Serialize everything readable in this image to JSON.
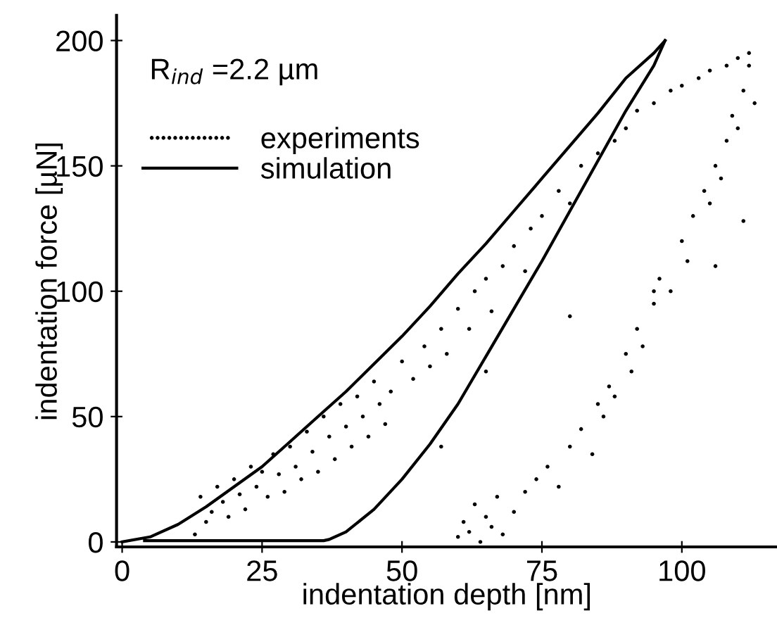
{
  "chart_data": {
    "type": "scatter",
    "xlabel": "indentation depth [nm]",
    "ylabel": "indentation force [µN]",
    "annotations": [
      "R$_{ind}$ =2.2 µm"
    ],
    "xlim": [
      -1,
      117
    ],
    "ylim": [
      -2,
      210
    ],
    "xticks": [
      0,
      25,
      50,
      75,
      100
    ],
    "yticks": [
      0,
      50,
      100,
      150,
      200
    ],
    "grid": false,
    "legend": "top left",
    "series": [
      {
        "name": "experiments",
        "color": "#000000",
        "marker": "circle",
        "x": [
          13,
          14,
          15,
          16,
          17,
          18,
          19,
          20,
          21,
          22,
          23,
          24,
          25,
          26,
          27,
          28,
          29,
          30,
          31,
          32,
          33,
          34,
          35,
          36,
          37,
          38,
          39,
          40,
          41,
          42,
          43,
          44,
          45,
          46,
          47,
          48,
          50,
          52,
          54,
          55,
          57,
          58,
          60,
          62,
          63,
          65,
          66,
          68,
          70,
          72,
          73,
          75,
          78,
          80,
          82,
          85,
          88,
          90,
          92,
          95,
          98,
          100,
          103,
          105,
          108,
          110,
          112,
          60,
          61,
          62,
          63,
          64,
          65,
          66,
          67,
          68,
          70,
          72,
          74,
          76,
          78,
          80,
          82,
          84,
          85,
          86,
          87,
          88,
          90,
          91,
          92,
          93,
          95,
          96,
          98,
          100,
          101,
          102,
          104,
          105,
          106,
          107,
          108,
          109,
          110,
          111,
          112,
          113,
          57,
          65,
          80,
          95,
          106,
          111
        ],
        "values": [
          3,
          18,
          8,
          12,
          22,
          16,
          10,
          25,
          19,
          13,
          30,
          22,
          28,
          18,
          35,
          27,
          20,
          38,
          30,
          25,
          44,
          36,
          28,
          50,
          42,
          33,
          55,
          46,
          38,
          58,
          50,
          42,
          64,
          55,
          47,
          60,
          72,
          65,
          78,
          70,
          85,
          75,
          93,
          85,
          100,
          105,
          92,
          110,
          118,
          108,
          125,
          130,
          140,
          135,
          150,
          155,
          160,
          165,
          172,
          175,
          180,
          182,
          185,
          188,
          190,
          193,
          195,
          2,
          8,
          4,
          15,
          0,
          10,
          6,
          18,
          3,
          12,
          20,
          25,
          30,
          22,
          38,
          45,
          35,
          55,
          50,
          62,
          58,
          75,
          68,
          85,
          78,
          95,
          105,
          100,
          120,
          112,
          130,
          140,
          135,
          150,
          145,
          160,
          170,
          165,
          180,
          190,
          175,
          38,
          68,
          90,
          100,
          110,
          128
        ]
      },
      {
        "name": "simulation",
        "type": "line",
        "color": "#000000",
        "marker": "none",
        "line_style": "solid",
        "x": [
          0,
          5,
          10,
          15,
          20,
          25,
          30,
          35,
          40,
          45,
          50,
          55,
          60,
          65,
          70,
          75,
          80,
          85,
          90,
          95,
          97
        ],
        "values": [
          0,
          2,
          7,
          14,
          22,
          30,
          40,
          50,
          60,
          71,
          82,
          94,
          107,
          119,
          132,
          145,
          158,
          171,
          185,
          195,
          200
        ]
      },
      {
        "type": "line",
        "color": "#000000",
        "marker": "none",
        "line_style": "solid",
        "x": [
          97,
          95,
          90,
          85,
          80,
          75,
          70,
          65,
          60,
          55,
          50,
          45,
          40,
          37,
          36,
          30,
          20,
          10,
          4
        ],
        "values": [
          200,
          190,
          172,
          152,
          132,
          112,
          93,
          74,
          55,
          39,
          25,
          13,
          4,
          1,
          0.5,
          0.5,
          0.5,
          0.5,
          0.5
        ]
      }
    ]
  }
}
